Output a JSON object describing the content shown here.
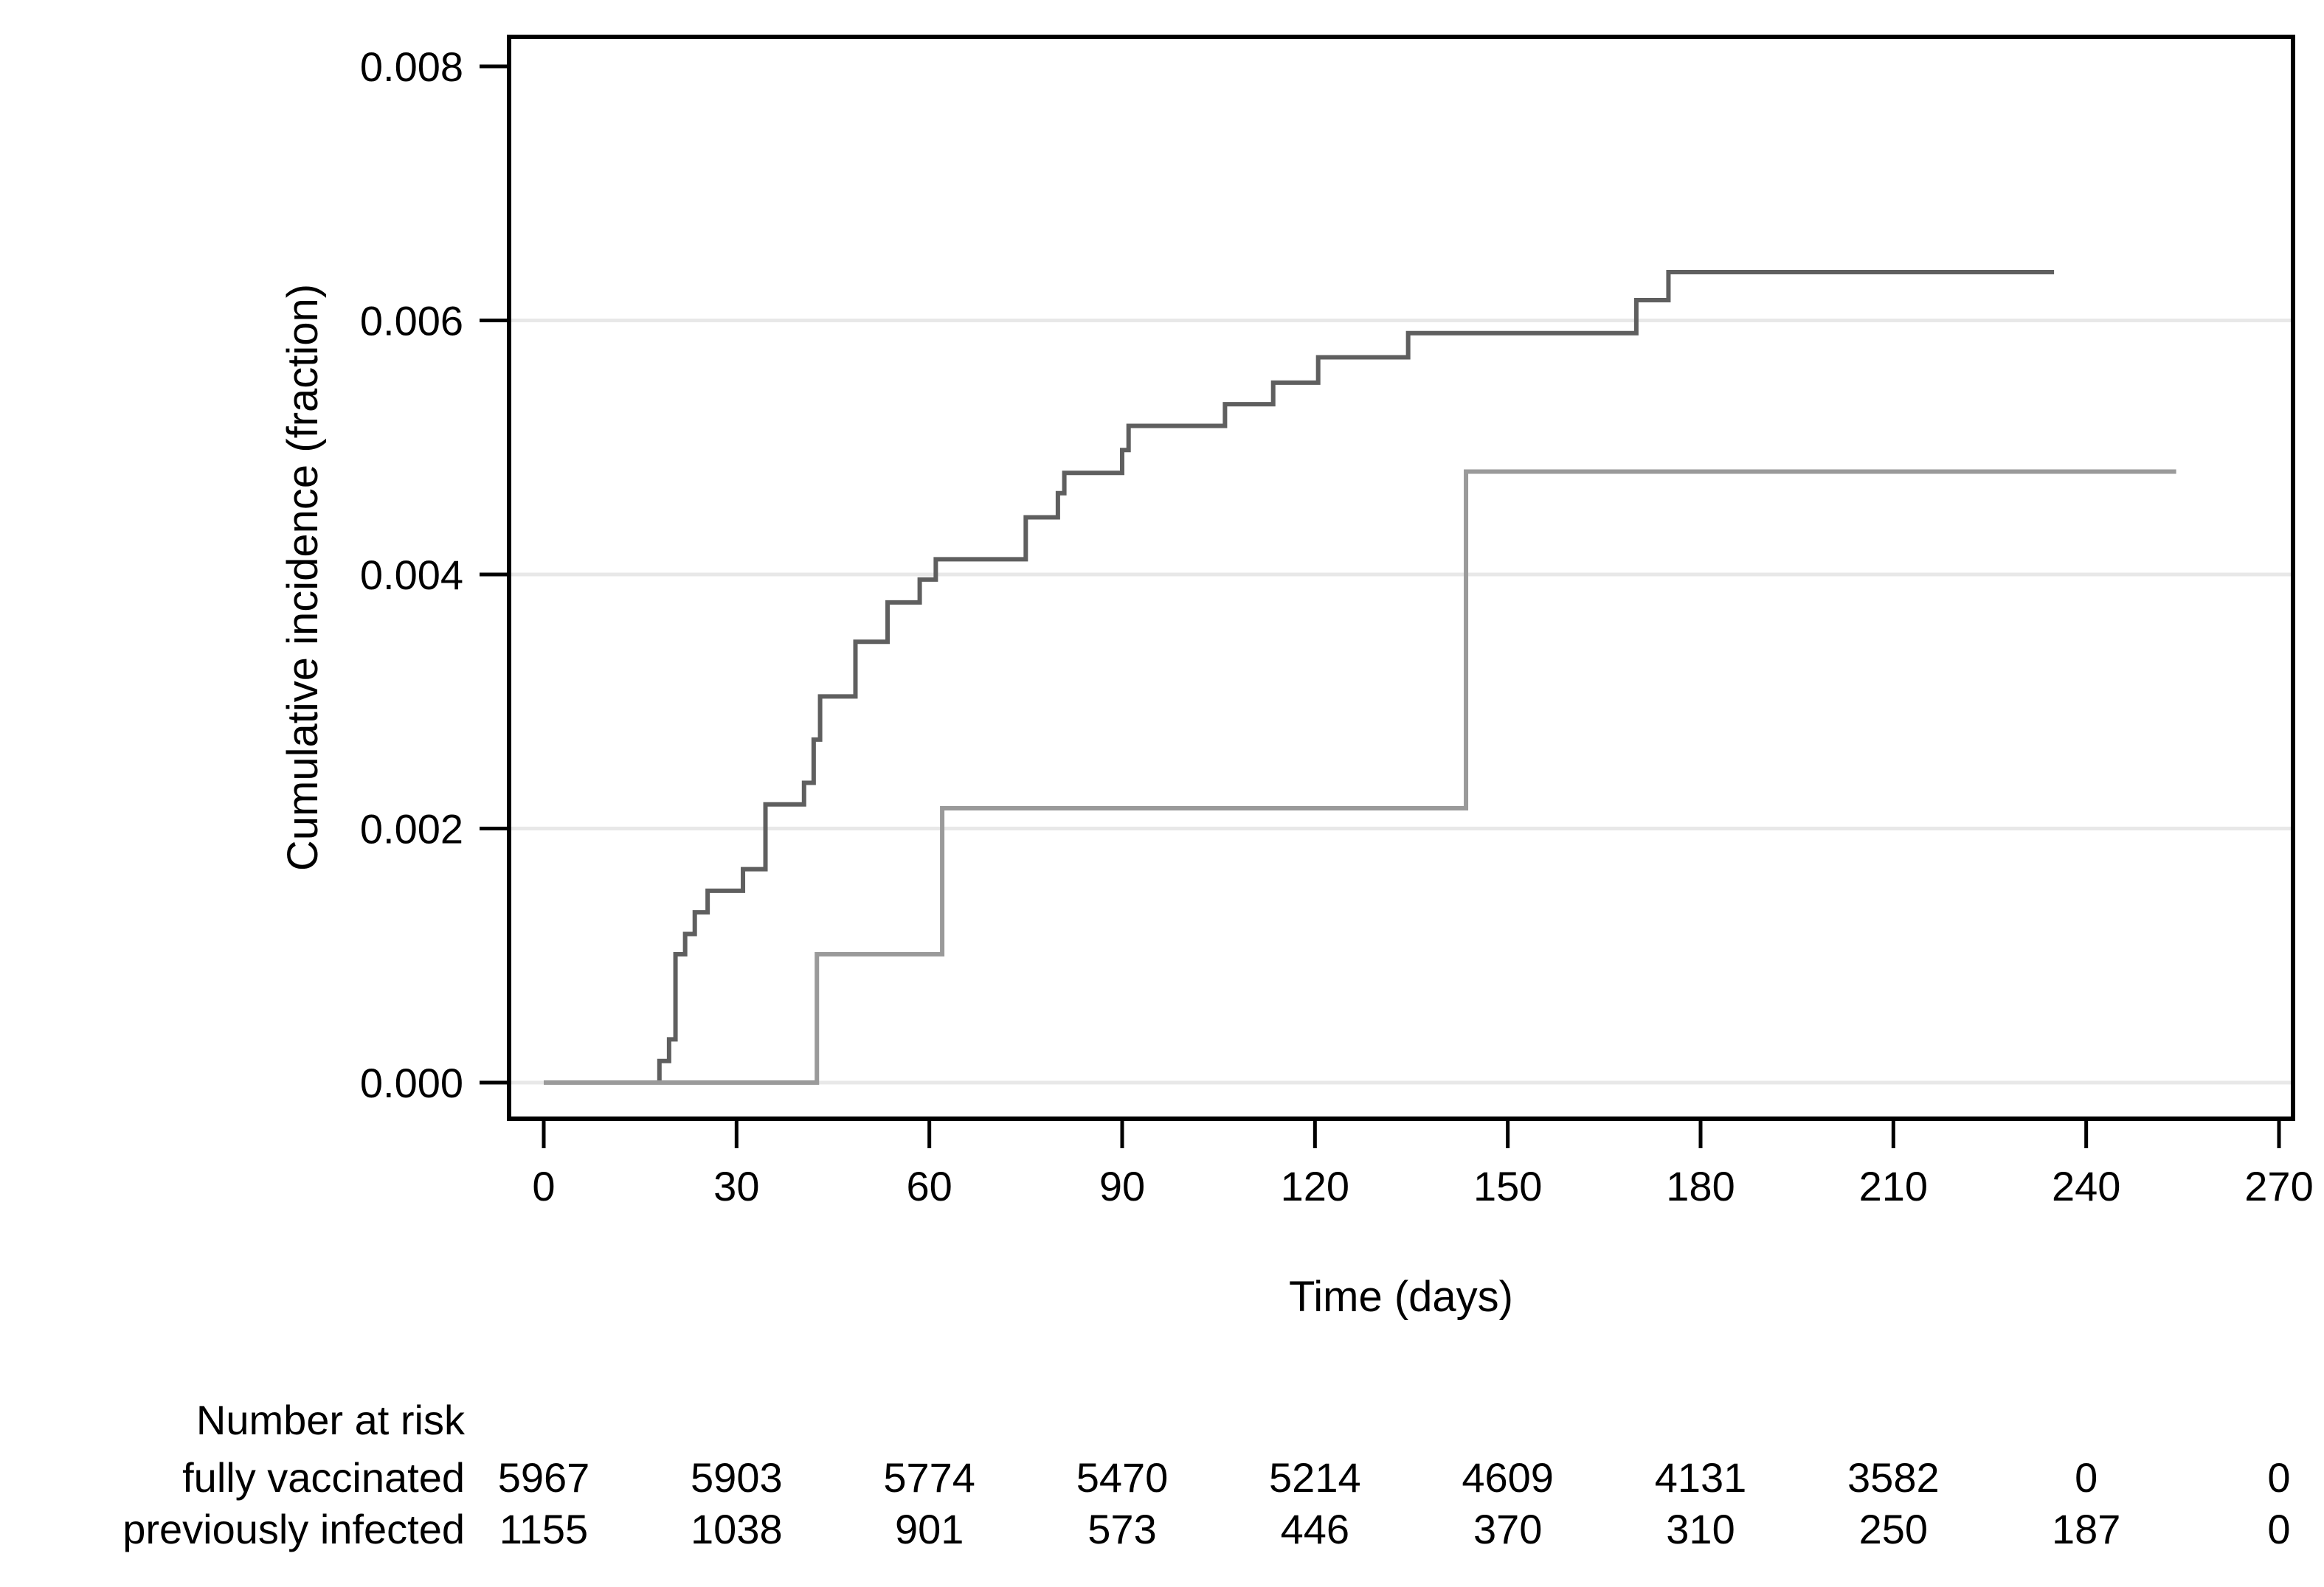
{
  "chart_data": {
    "type": "line",
    "subtype": "kaplan-meier-step",
    "title": "",
    "xlabel": "Time (days)",
    "ylabel": "Cumulative incidence (fraction)",
    "xlim": [
      0,
      270
    ],
    "ylim": [
      0,
      0.008
    ],
    "xticks": [
      0,
      30,
      60,
      90,
      120,
      150,
      180,
      210,
      240,
      270
    ],
    "yticks": [
      {
        "value": 0.0,
        "label": "0.000"
      },
      {
        "value": 0.002,
        "label": "0.002"
      },
      {
        "value": 0.004,
        "label": "0.004"
      },
      {
        "value": 0.006,
        "label": "0.006"
      },
      {
        "value": 0.008,
        "label": "0.008"
      }
    ],
    "grid_values": [
      0.0,
      0.002,
      0.004,
      0.006
    ],
    "grid_on": true,
    "legend_position": "none",
    "colors": {
      "axis": "#000000",
      "gridline": "#e8e8e8",
      "fully_vaccinated_line": "#5f5f5f",
      "previously_infected_line": "#9a9a9a"
    },
    "series": [
      {
        "name": "fully vaccinated",
        "color": "#5f5f5f",
        "points": [
          [
            0,
            0
          ],
          [
            18,
            0.00017
          ],
          [
            19.5,
            0.00034
          ],
          [
            20.5,
            0.00101
          ],
          [
            22,
            0.00117
          ],
          [
            23.5,
            0.00134
          ],
          [
            25.5,
            0.00151
          ],
          [
            31,
            0.00168
          ],
          [
            34.5,
            0.00219
          ],
          [
            40.5,
            0.00236
          ],
          [
            42,
            0.0027
          ],
          [
            43,
            0.00304
          ],
          [
            48.5,
            0.00347
          ],
          [
            53.5,
            0.00378
          ],
          [
            58.5,
            0.00396
          ],
          [
            61,
            0.00412
          ],
          [
            75,
            0.00445
          ],
          [
            80,
            0.00464
          ],
          [
            81,
            0.0048
          ],
          [
            90,
            0.00498
          ],
          [
            91,
            0.00517
          ],
          [
            106,
            0.00534
          ],
          [
            113.5,
            0.00551
          ],
          [
            120.5,
            0.00571
          ],
          [
            134.5,
            0.0059
          ],
          [
            170,
            0.00616
          ],
          [
            175,
            0.00638
          ],
          [
            235,
            0.00638
          ]
        ]
      },
      {
        "name": "previously infected",
        "color": "#9a9a9a",
        "points": [
          [
            0,
            0
          ],
          [
            42.5,
            0.00101
          ],
          [
            62,
            0.00216
          ],
          [
            143.5,
            0.00481
          ],
          [
            254,
            0.00481
          ]
        ]
      }
    ],
    "risk_table": {
      "title": "Number at risk",
      "times": [
        0,
        30,
        60,
        90,
        120,
        150,
        180,
        210,
        240,
        270
      ],
      "rows": [
        {
          "label": "fully vaccinated",
          "values": [
            "5967",
            "5903",
            "5774",
            "5470",
            "5214",
            "4609",
            "4131",
            "3582",
            "0",
            "0"
          ]
        },
        {
          "label": "previously infected",
          "values": [
            "1155",
            "1038",
            "901",
            "573",
            "446",
            "370",
            "310",
            "250",
            "187",
            "0"
          ]
        }
      ]
    }
  }
}
